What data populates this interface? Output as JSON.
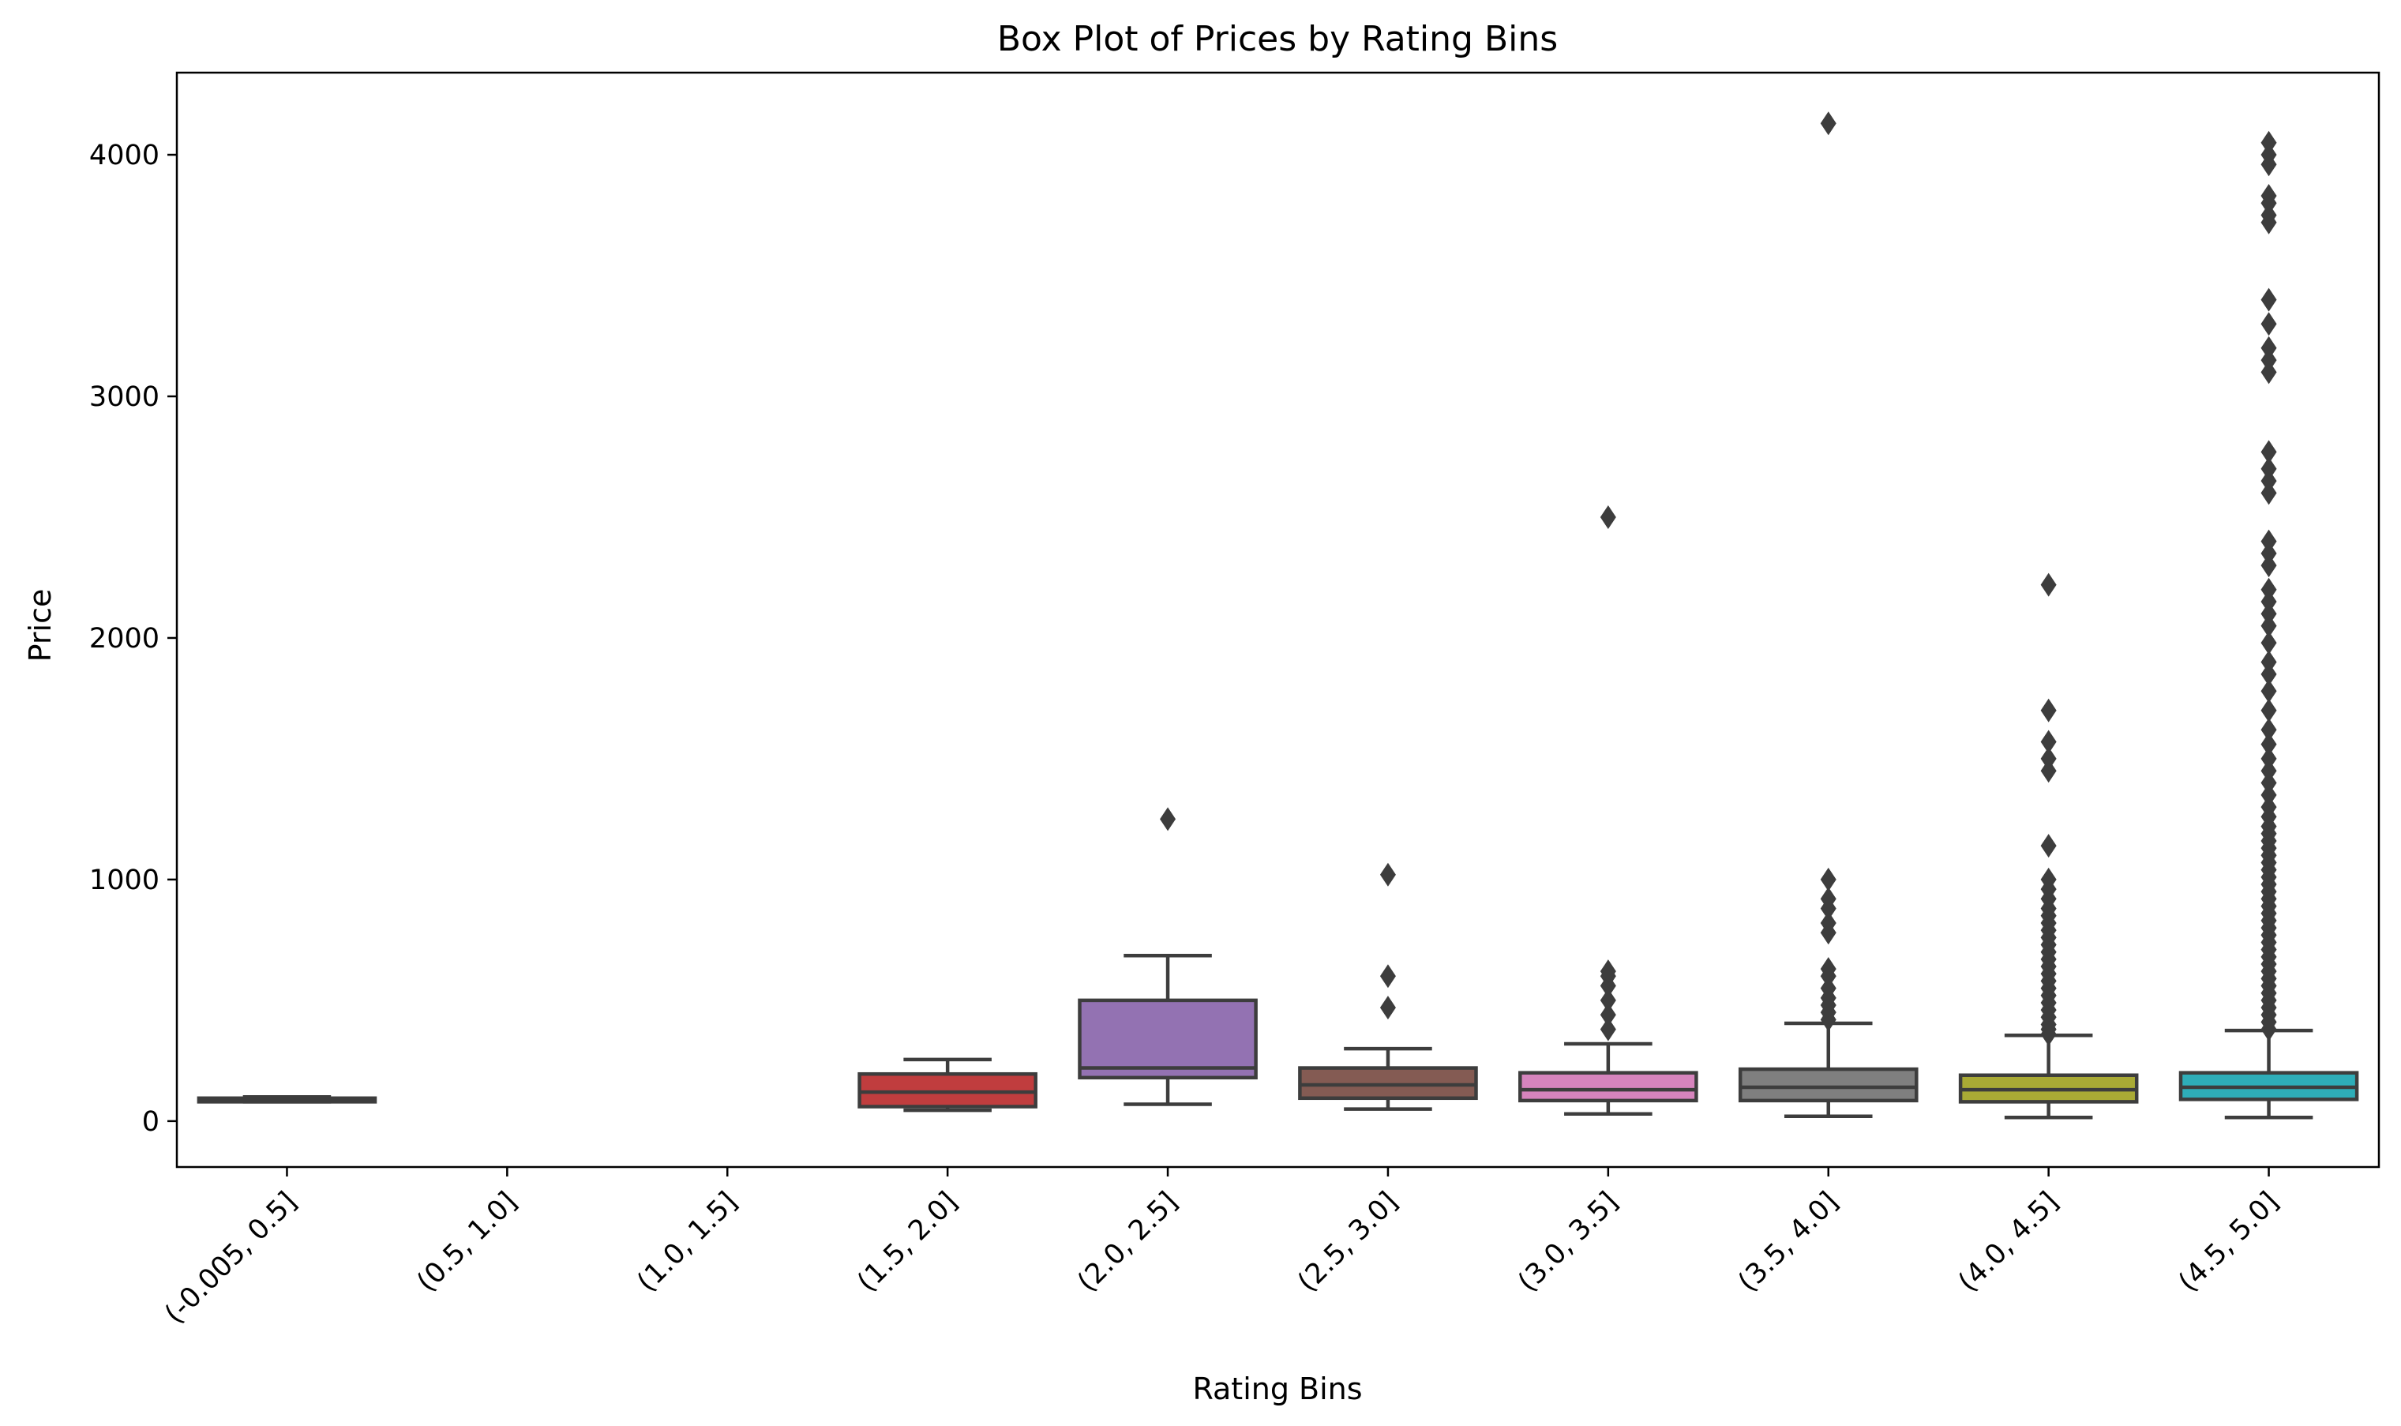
{
  "chart_data": {
    "type": "box",
    "title": "Box Plot of Prices by Rating Bins",
    "xlabel": "Rating Bins",
    "ylabel": "Price",
    "ylim": [
      -190,
      4340
    ],
    "yticks": [
      0,
      1000,
      2000,
      3000,
      4000
    ],
    "yticklabels": [
      "0",
      "1000",
      "2000",
      "3000",
      "4000"
    ],
    "grid": false,
    "categories": [
      "(-0.005, 0.5]",
      "(0.5, 1.0]",
      "(1.0, 1.5]",
      "(1.5, 2.0]",
      "(2.0, 2.5]",
      "(2.5, 3.0]",
      "(3.0, 3.5]",
      "(3.5, 4.0]",
      "(4.0, 4.5]",
      "(4.5, 5.0]"
    ],
    "boxes": [
      {
        "color": "#3274a1",
        "whisker_low": 80,
        "q1": 80,
        "median": 90,
        "q3": 95,
        "whisker_high": 100,
        "outliers": []
      },
      null,
      null,
      {
        "color": "#c03d3e",
        "whisker_low": 45,
        "q1": 60,
        "median": 120,
        "q3": 195,
        "whisker_high": 255,
        "outliers": []
      },
      {
        "color": "#9372b2",
        "whisker_low": 70,
        "q1": 180,
        "median": 220,
        "q3": 500,
        "whisker_high": 685,
        "outliers": [
          1250
        ]
      },
      {
        "color": "#845b53",
        "whisker_low": 50,
        "q1": 95,
        "median": 150,
        "q3": 220,
        "whisker_high": 300,
        "outliers": [
          470,
          600,
          1020
        ]
      },
      {
        "color": "#d684bd",
        "whisker_low": 30,
        "q1": 85,
        "median": 130,
        "q3": 200,
        "whisker_high": 320,
        "outliers": [
          380,
          440,
          500,
          560,
          600,
          620,
          2500
        ]
      },
      {
        "color": "#7f7f7f",
        "whisker_low": 20,
        "q1": 85,
        "median": 140,
        "q3": 215,
        "whisker_high": 405,
        "outliers": [
          420,
          450,
          480,
          510,
          550,
          600,
          630,
          780,
          820,
          880,
          920,
          1000,
          4130
        ]
      },
      {
        "color": "#a9aa35",
        "whisker_low": 15,
        "q1": 80,
        "median": 130,
        "q3": 190,
        "whisker_high": 355,
        "outliers": [
          360,
          380,
          400,
          430,
          460,
          490,
          520,
          550,
          580,
          610,
          640,
          670,
          700,
          730,
          760,
          790,
          820,
          850,
          880,
          920,
          960,
          1000,
          1140,
          1450,
          1500,
          1570,
          1700,
          2220
        ]
      },
      {
        "color": "#2eadb8",
        "whisker_low": 15,
        "q1": 90,
        "median": 140,
        "q3": 200,
        "whisker_high": 375,
        "outliers": [
          380,
          410,
          440,
          470,
          500,
          530,
          560,
          590,
          620,
          650,
          680,
          710,
          740,
          770,
          800,
          830,
          860,
          890,
          920,
          950,
          980,
          1010,
          1040,
          1070,
          1100,
          1130,
          1160,
          1190,
          1220,
          1260,
          1300,
          1350,
          1400,
          1450,
          1500,
          1560,
          1620,
          1700,
          1780,
          1850,
          1900,
          1980,
          2050,
          2100,
          2150,
          2200,
          2300,
          2350,
          2400,
          2600,
          2650,
          2700,
          2770,
          3100,
          3150,
          3200,
          3300,
          3400,
          3720,
          3750,
          3800,
          3830,
          3960,
          4000,
          4050
        ]
      }
    ]
  }
}
